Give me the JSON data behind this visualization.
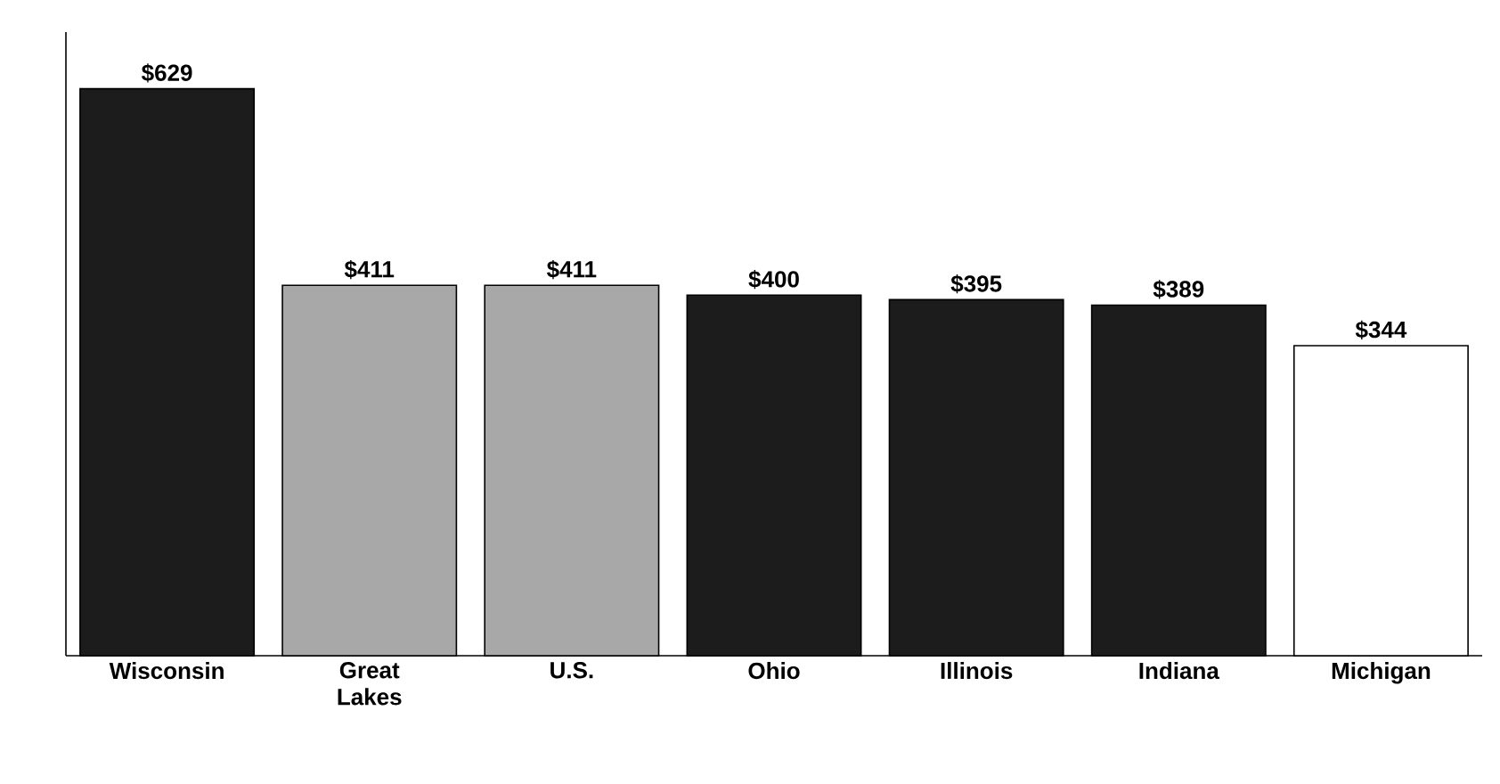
{
  "chart_data": {
    "type": "bar",
    "categories": [
      "Wisconsin",
      "Great Lakes",
      "U.S.",
      "Ohio",
      "Illinois",
      "Indiana",
      "Michigan"
    ],
    "values": [
      629,
      411,
      411,
      400,
      395,
      389,
      344
    ],
    "colors": [
      "#1c1c1c",
      "#a8a8a8",
      "#a8a8a8",
      "#1c1c1c",
      "#1c1c1c",
      "#1c1c1c",
      "#ffffff"
    ],
    "value_labels": [
      "$629",
      "$411",
      "$411",
      "$400",
      "$395",
      "$389",
      "$344"
    ],
    "tick_labels": "x"
  }
}
